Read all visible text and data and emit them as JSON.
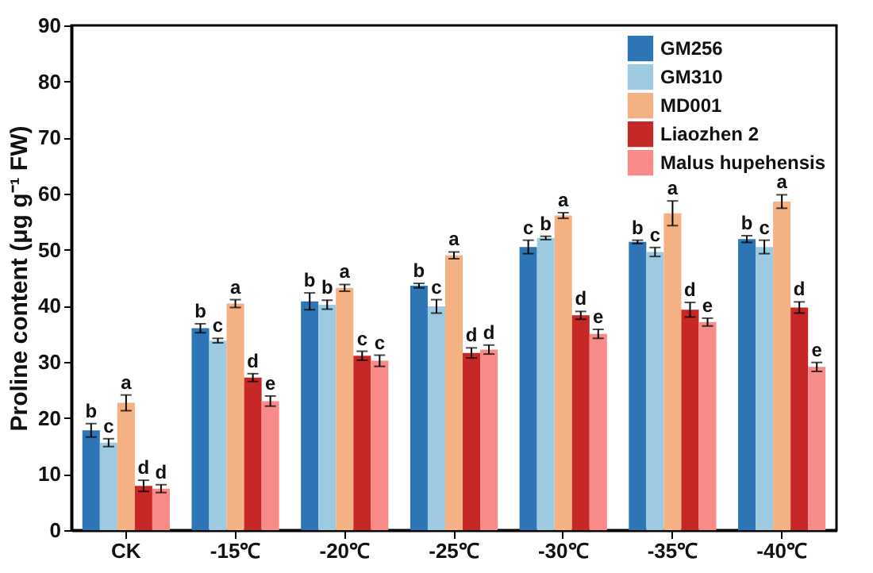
{
  "chart_data": {
    "type": "bar",
    "ylabel": "Proline content (μg g⁻¹ FW)",
    "categories": [
      "CK",
      "-15℃",
      "-20℃",
      "-25℃",
      "-30℃",
      "-35℃",
      "-40℃"
    ],
    "ylim": [
      0,
      90
    ],
    "yticks": [
      0,
      10,
      20,
      30,
      40,
      50,
      60,
      70,
      80,
      90
    ],
    "grid": false,
    "legend": "top right",
    "series": [
      {
        "name": "GM256",
        "color": "#2e75b6",
        "values": [
          17.8,
          36.0,
          40.8,
          43.6,
          50.5,
          51.4,
          51.9
        ],
        "errors": [
          1.2,
          0.8,
          1.5,
          0.4,
          1.2,
          0.3,
          0.6
        ],
        "value_labels": [
          "b",
          "b",
          "b",
          "b",
          "c",
          "b",
          "b"
        ]
      },
      {
        "name": "GM310",
        "color": "#9ecae1",
        "values": [
          15.6,
          33.8,
          40.2,
          39.9,
          52.1,
          49.6,
          50.5
        ],
        "errors": [
          0.7,
          0.4,
          0.8,
          1.2,
          0.3,
          0.8,
          1.2
        ],
        "value_labels": [
          "c",
          "c",
          "b",
          "c",
          "b",
          "c",
          "c"
        ]
      },
      {
        "name": "MD001",
        "color": "#f4b183",
        "values": [
          22.7,
          40.4,
          43.2,
          49.0,
          56.1,
          56.5,
          58.6
        ],
        "errors": [
          1.4,
          0.7,
          0.6,
          0.6,
          0.5,
          2.2,
          1.2
        ],
        "value_labels": [
          "a",
          "a",
          "a",
          "a",
          "a",
          "a",
          "a"
        ]
      },
      {
        "name": "Liaozhen 2",
        "color": "#c62828",
        "values": [
          7.9,
          27.2,
          31.1,
          31.6,
          38.3,
          39.3,
          39.7
        ],
        "errors": [
          1.0,
          0.7,
          0.8,
          0.9,
          0.7,
          1.3,
          1.0
        ],
        "value_labels": [
          "d",
          "d",
          "c",
          "d",
          "d",
          "d",
          "d"
        ]
      },
      {
        "name": "Malus hupehensis",
        "color": "#f88a8a",
        "values": [
          7.4,
          23.0,
          30.2,
          32.2,
          35.0,
          37.1,
          29.1
        ],
        "errors": [
          0.7,
          0.9,
          1.0,
          0.8,
          0.8,
          0.7,
          0.8
        ],
        "value_labels": [
          "d",
          "e",
          "c",
          "d",
          "e",
          "e",
          "e"
        ]
      }
    ]
  }
}
